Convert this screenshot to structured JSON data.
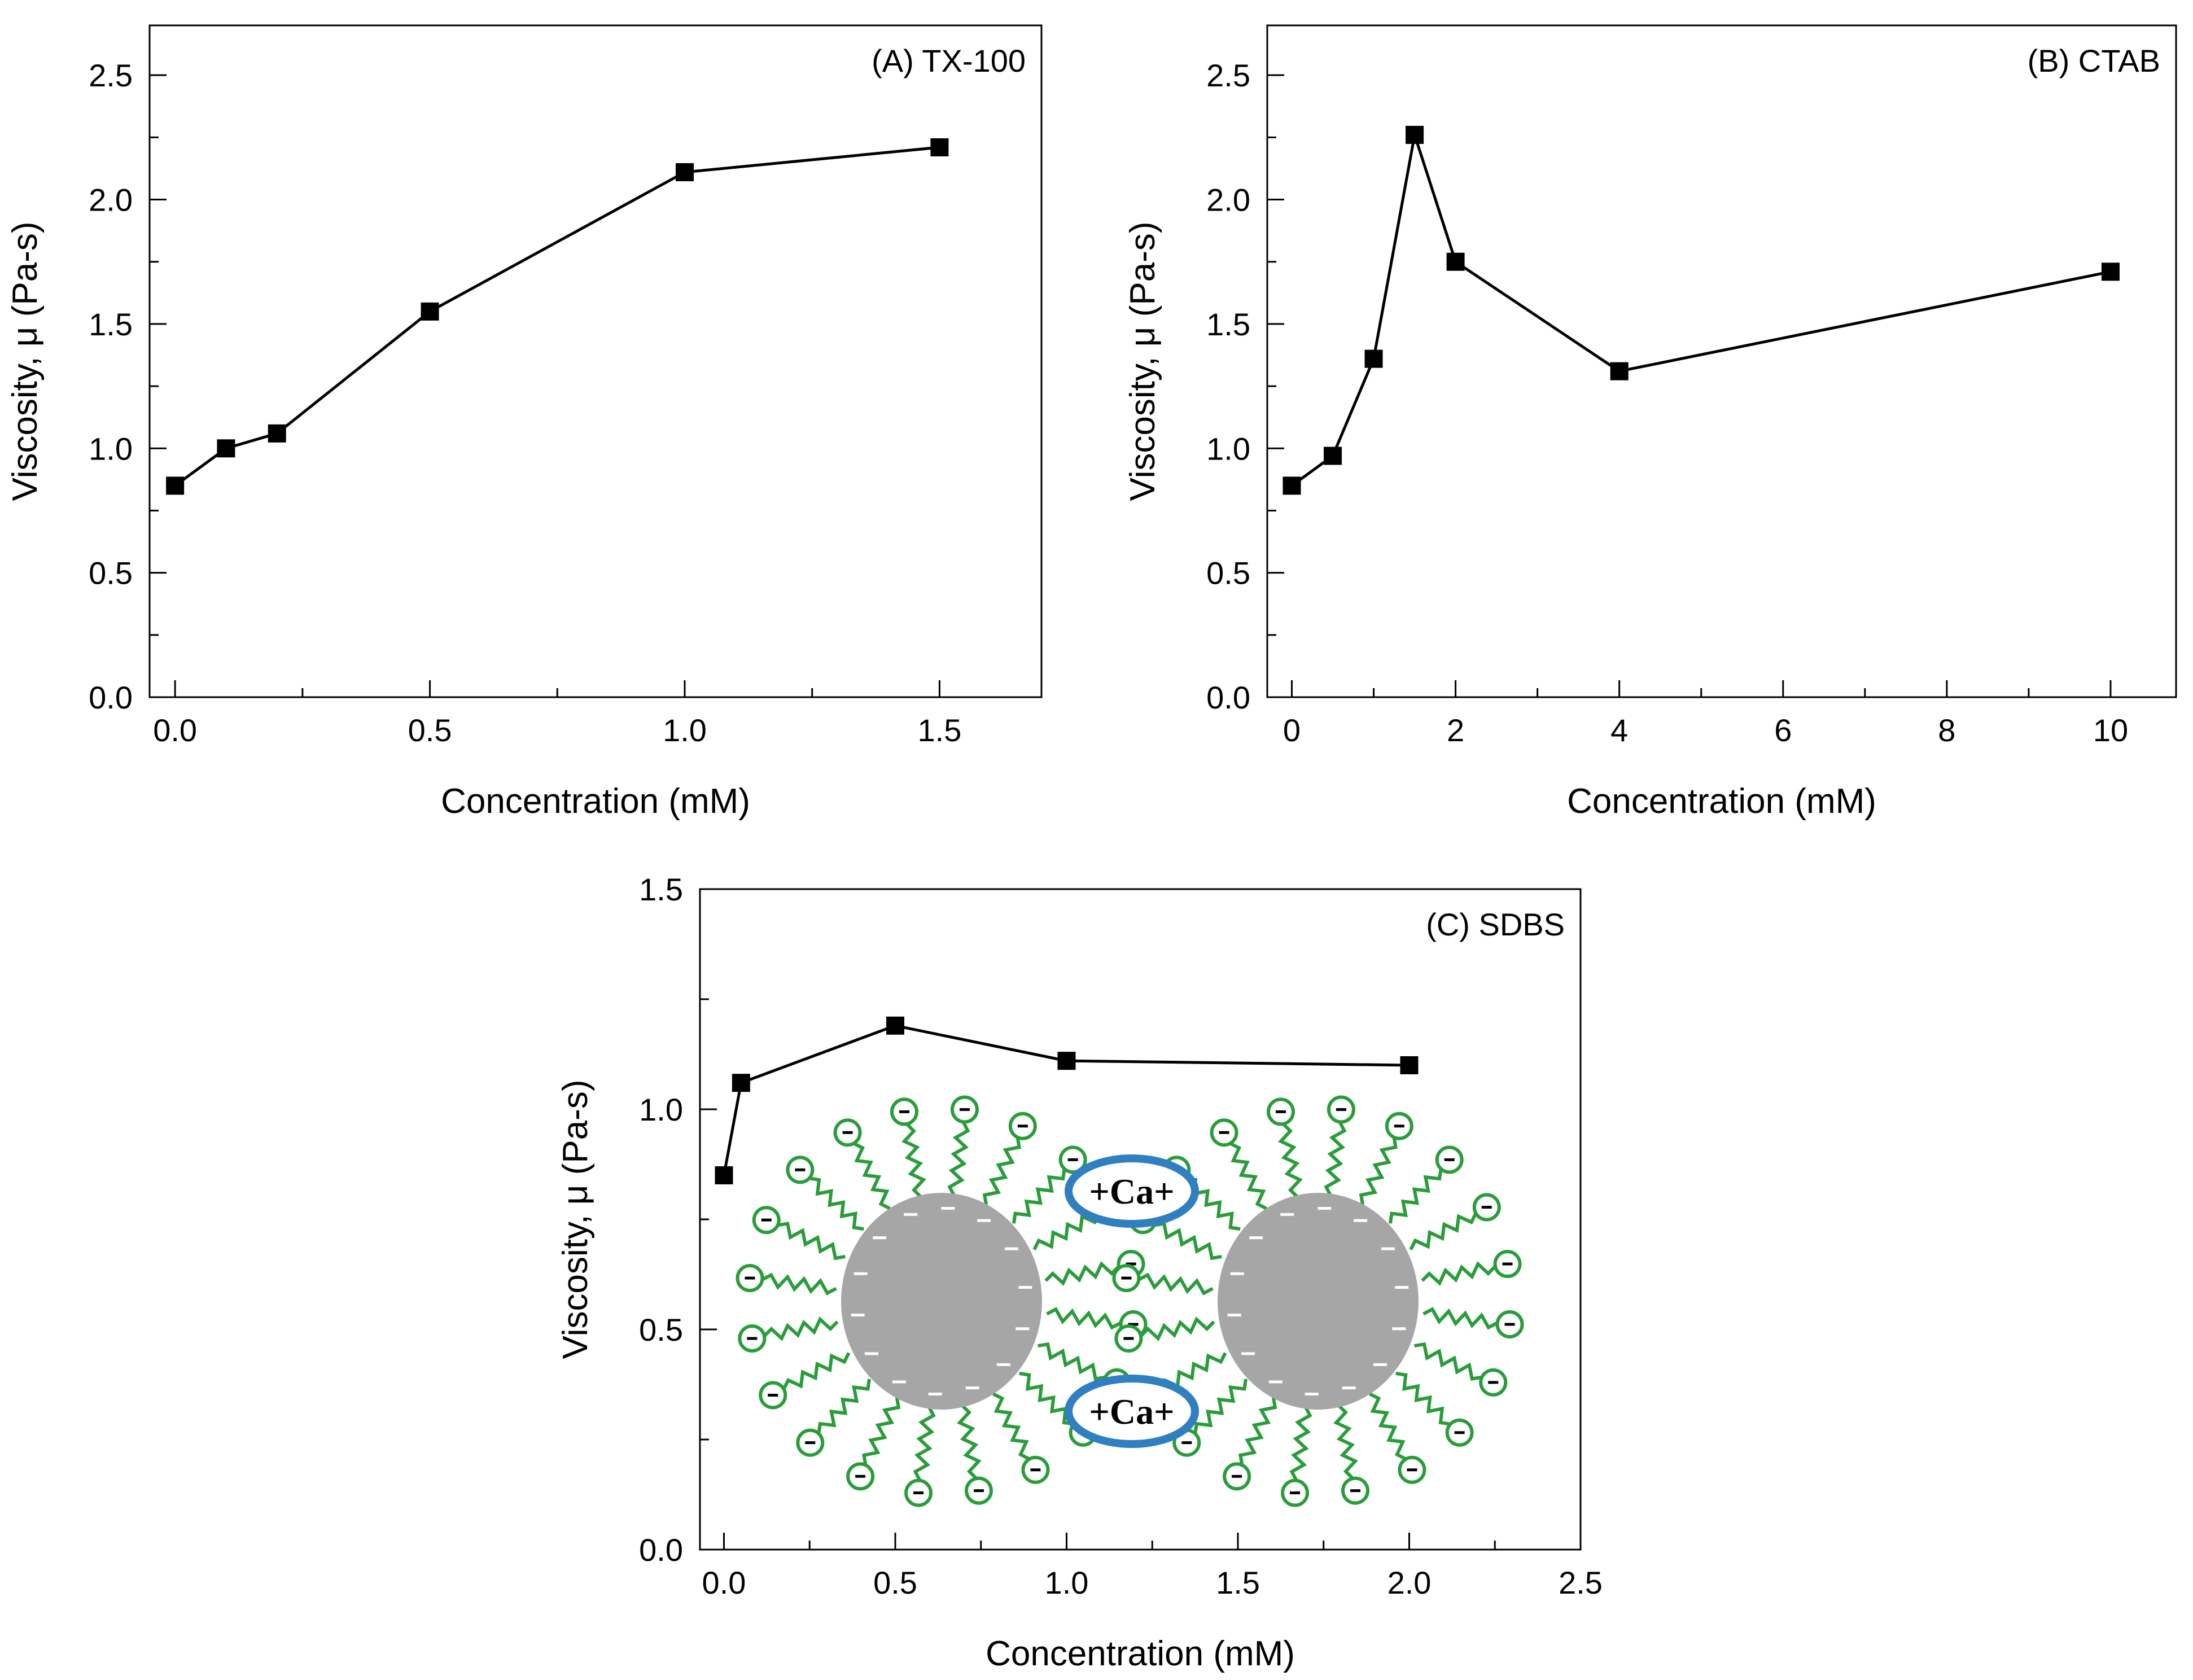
{
  "chart_data": [
    {
      "type": "line",
      "panel_label": "(A) TX-100",
      "xlabel": "Concentration (mM)",
      "ylabel": "Viscosity, μ (Pa-s)",
      "xlim": [
        -0.05,
        1.7
      ],
      "ylim": [
        0.0,
        2.7
      ],
      "xticks": [
        0.0,
        0.5,
        1.0,
        1.5
      ],
      "xtick_labels": [
        "0.0",
        "0.5",
        "1.0",
        "1.5"
      ],
      "yticks": [
        0.0,
        0.5,
        1.0,
        1.5,
        2.0,
        2.5
      ],
      "ytick_labels": [
        "0.0",
        "0.5",
        "1.0",
        "1.5",
        "2.0",
        "2.5"
      ],
      "x": [
        0.0,
        0.1,
        0.2,
        0.5,
        1.0,
        1.5
      ],
      "y": [
        0.85,
        1.0,
        1.06,
        1.55,
        2.11,
        2.21
      ],
      "marker": "square",
      "color": "#000000"
    },
    {
      "type": "line",
      "panel_label": "(B) CTAB",
      "xlabel": "Concentration (mM)",
      "ylabel": "Viscosity, μ (Pa-s)",
      "xlim": [
        -0.3,
        10.8
      ],
      "ylim": [
        0.0,
        2.7
      ],
      "xticks": [
        0,
        2,
        4,
        6,
        8,
        10
      ],
      "xtick_labels": [
        "0",
        "2",
        "4",
        "6",
        "8",
        "10"
      ],
      "yticks": [
        0.0,
        0.5,
        1.0,
        1.5,
        2.0,
        2.5
      ],
      "ytick_labels": [
        "0.0",
        "0.5",
        "1.0",
        "1.5",
        "2.0",
        "2.5"
      ],
      "x": [
        0.0,
        0.5,
        1.0,
        1.5,
        2.0,
        4.0,
        10.0
      ],
      "y": [
        0.85,
        0.97,
        1.36,
        2.26,
        1.75,
        1.31,
        1.71
      ],
      "marker": "square",
      "color": "#000000"
    },
    {
      "type": "line",
      "panel_label": "(C) SDBS",
      "xlabel": "Concentration (mM)",
      "ylabel": "Viscosity, μ (Pa-s)",
      "xlim": [
        -0.07,
        2.5
      ],
      "ylim": [
        0.0,
        1.5
      ],
      "xticks": [
        0.0,
        0.5,
        1.0,
        1.5,
        2.0,
        2.5
      ],
      "xtick_labels": [
        "0.0",
        "0.5",
        "1.0",
        "1.5",
        "2.0",
        "2.5"
      ],
      "yticks": [
        0.0,
        0.5,
        1.0,
        1.5
      ],
      "ytick_labels": [
        "0.0",
        "0.5",
        "1.0",
        "1.5"
      ],
      "x": [
        0.0,
        0.05,
        0.5,
        1.0,
        2.0
      ],
      "y": [
        0.85,
        1.06,
        1.19,
        1.11,
        1.1
      ],
      "marker": "square",
      "color": "#000000",
      "inset": {
        "ion_label": "+Ca+",
        "micelle_color": "#a6a6a6",
        "surfactant_color": "#2a9d3a",
        "ion_ring_color": "#2f7fc1"
      }
    }
  ]
}
